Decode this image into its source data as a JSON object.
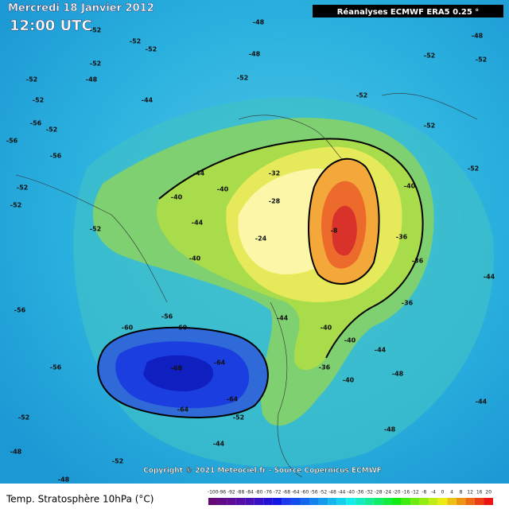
{
  "header": {
    "date": "Mercredi 18 Janvier 2012",
    "time": "12:00 UTC",
    "source": "Réanalyses ECMWF ERA5 0.25 °"
  },
  "footer": {
    "copyright": "Copyright © 2021 Meteociel.fr - Source Copernicus ECMWF",
    "title": "Temp. Stratosphère 10hPa (°C)"
  },
  "scale": [
    -100,
    -96,
    -92,
    -88,
    -84,
    -80,
    -76,
    -72,
    -68,
    -64,
    -60,
    -56,
    -52,
    -48,
    -44,
    -40,
    -36,
    -32,
    -28,
    -24,
    -20,
    -16,
    -12,
    -8,
    -4,
    0,
    4,
    8,
    12,
    16,
    20
  ],
  "contour_labels": [
    -52,
    -52,
    -52,
    -52,
    -52,
    -48,
    -52,
    -44,
    -56,
    -52,
    -56,
    -56,
    -52,
    -52,
    -52,
    -56,
    -56,
    -52,
    -48,
    -48,
    -52,
    -56,
    -60,
    -60,
    -68,
    -64,
    -64,
    -64,
    -52,
    -48,
    -48,
    -52,
    -52,
    -52,
    -48,
    -52,
    -52,
    -52,
    -44,
    -44,
    -40,
    -40,
    -40,
    -32,
    -28,
    -24,
    -8,
    -40,
    -36,
    -36,
    -36,
    -40,
    -44,
    -40,
    -36,
    -44,
    -48,
    -48,
    -44,
    -44,
    -44,
    -40
  ]
}
